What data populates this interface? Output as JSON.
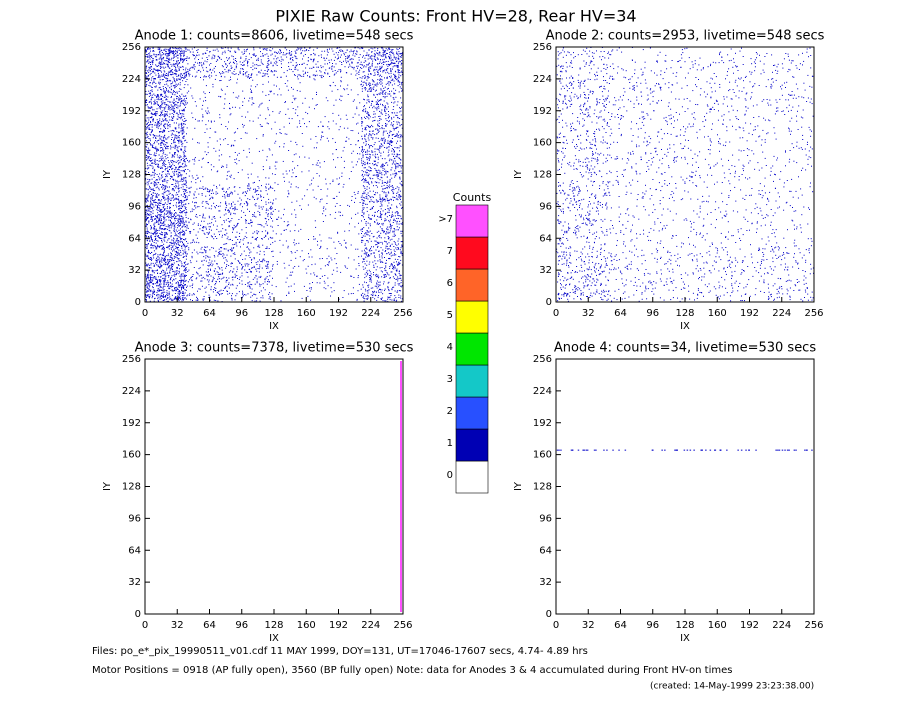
{
  "title": "PIXIE Raw Counts:  Front HV=28, Rear HV=34",
  "panels": [
    {
      "title": "Anode 1: counts=8606, livetime=548 secs",
      "xlabel": "IX",
      "ylabel": "IY"
    },
    {
      "title": "Anode 2: counts=2953, livetime=548 secs",
      "xlabel": "IX",
      "ylabel": "IY"
    },
    {
      "title": "Anode 3: counts=7378, livetime=530 secs",
      "xlabel": "IX",
      "ylabel": "IY"
    },
    {
      "title": "Anode 4: counts=34, livetime=530 secs",
      "xlabel": "IX",
      "ylabel": "IY"
    }
  ],
  "axis_lim": [
    0,
    256
  ],
  "ticks": [
    0,
    32,
    64,
    96,
    128,
    160,
    192,
    224,
    256
  ],
  "colorbar": {
    "title": "Counts",
    "labels": [
      "0",
      "1",
      "2",
      "3",
      "4",
      "5",
      "6",
      "7",
      ">7"
    ],
    "colors": [
      "#ffffff",
      "#0000b4",
      "#2850ff",
      "#14c8c8",
      "#00e600",
      "#ffff00",
      "#ff6428",
      "#ff0a1e",
      "#ff50ff"
    ]
  },
  "footer": [
    "Files: po_e*_pix_19990511_v01.cdf    11 MAY 1999, DOY=131, UT=17046-17607 secs,  4.74- 4.89 hrs",
    "Motor Positions = 0918 (AP fully open), 3560 (BP fully open)    Note: data for Anodes 3 & 4 accumulated during Front HV-on times",
    "(created: 14-May-1999 23:23:38.00)"
  ]
}
